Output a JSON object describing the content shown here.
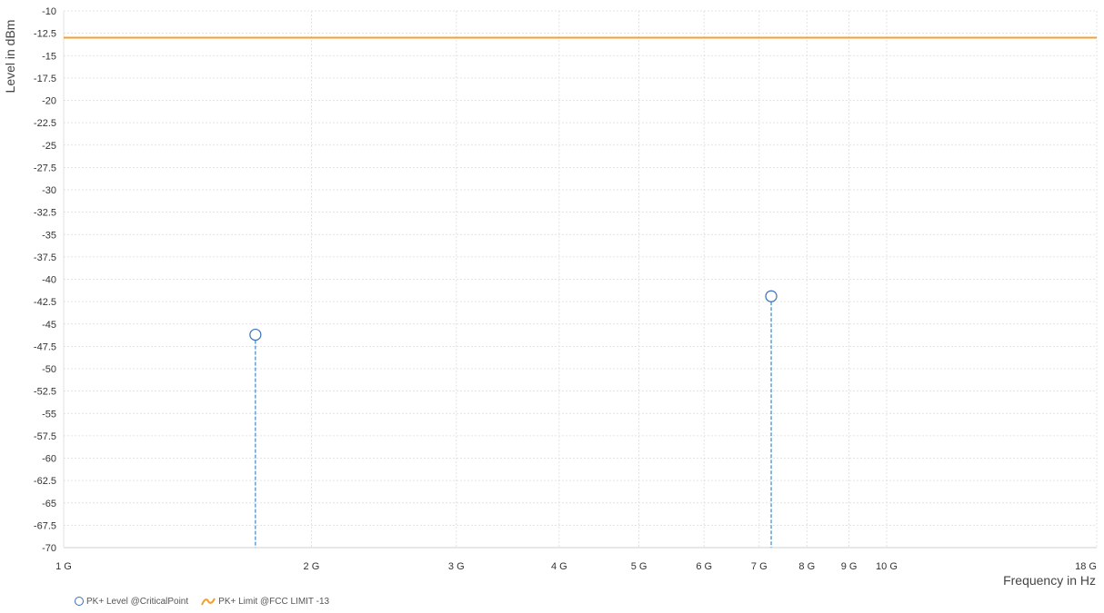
{
  "chart_data": {
    "type": "scatter",
    "xlabel": "Frequency in Hz",
    "ylabel": "Level in dBm",
    "x_scale": "log",
    "x_range": [
      1000000000,
      18000000000
    ],
    "y_range": [
      -70,
      -10
    ],
    "x_ticks": [
      {
        "value": 1000000000,
        "label": "1 G"
      },
      {
        "value": 2000000000,
        "label": "2 G"
      },
      {
        "value": 3000000000,
        "label": "3 G"
      },
      {
        "value": 4000000000,
        "label": "4 G"
      },
      {
        "value": 5000000000,
        "label": "5 G"
      },
      {
        "value": 6000000000,
        "label": "6 G"
      },
      {
        "value": 7000000000,
        "label": "7 G"
      },
      {
        "value": 8000000000,
        "label": "8 G"
      },
      {
        "value": 9000000000,
        "label": "9 G"
      },
      {
        "value": 10000000000,
        "label": "10 G"
      },
      {
        "value": 18000000000,
        "label": "18 G"
      }
    ],
    "y_ticks": [
      {
        "value": -10,
        "label": "-10"
      },
      {
        "value": -12.5,
        "label": "-12.5"
      },
      {
        "value": -15,
        "label": "-15"
      },
      {
        "value": -17.5,
        "label": "-17.5"
      },
      {
        "value": -20,
        "label": "-20"
      },
      {
        "value": -22.5,
        "label": "-22.5"
      },
      {
        "value": -25,
        "label": "-25"
      },
      {
        "value": -27.5,
        "label": "-27.5"
      },
      {
        "value": -30,
        "label": "-30"
      },
      {
        "value": -32.5,
        "label": "-32.5"
      },
      {
        "value": -35,
        "label": "-35"
      },
      {
        "value": -37.5,
        "label": "-37.5"
      },
      {
        "value": -40,
        "label": "-40"
      },
      {
        "value": -42.5,
        "label": "-42.5"
      },
      {
        "value": -45,
        "label": "-45"
      },
      {
        "value": -47.5,
        "label": "-47.5"
      },
      {
        "value": -50,
        "label": "-50"
      },
      {
        "value": -52.5,
        "label": "-52.5"
      },
      {
        "value": -55,
        "label": "-55"
      },
      {
        "value": -57.5,
        "label": "-57.5"
      },
      {
        "value": -60,
        "label": "-60"
      },
      {
        "value": -62.5,
        "label": "-62.5"
      },
      {
        "value": -65,
        "label": "-65"
      },
      {
        "value": -67.5,
        "label": "-67.5"
      },
      {
        "value": -70,
        "label": "-70"
      }
    ],
    "grid": true,
    "legend_position": "bottom-left",
    "series": [
      {
        "name": "PK+ Level @CriticalPoint",
        "kind": "points-with-stems",
        "color": "#3a6fb5",
        "stem_color": "#4a90d0",
        "points": [
          {
            "x": 1710000000,
            "y": -46.2
          },
          {
            "x": 7240000000,
            "y": -41.9
          }
        ]
      },
      {
        "name": "PK+ Limit @FCC LIMIT -13",
        "kind": "line",
        "color": "#f0a030",
        "points": [
          {
            "x": 1000000000,
            "y": -13
          },
          {
            "x": 18000000000,
            "y": -13
          }
        ]
      }
    ]
  }
}
